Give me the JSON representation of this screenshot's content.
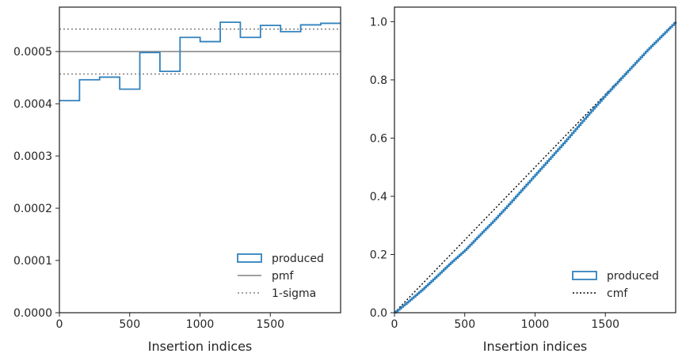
{
  "chart_data": [
    {
      "type": "histogram-step",
      "xlabel": "Insertion indices",
      "ylabel": "",
      "xlim": [
        0,
        2000
      ],
      "ylim": [
        0,
        0.000585
      ],
      "xticks": [
        "0",
        "500",
        "1000",
        "1500"
      ],
      "yticks": [
        "0.0000",
        "0.0001",
        "0.0002",
        "0.0003",
        "0.0004",
        "0.0005"
      ],
      "bin_edges": [
        0,
        143,
        286,
        429,
        572,
        715,
        858,
        1001,
        1144,
        1287,
        1430,
        1573,
        1716,
        1859,
        2000
      ],
      "series": [
        {
          "name": "produced",
          "color": "#3182bd",
          "values": [
            0.000406,
            0.000446,
            0.000451,
            0.000428,
            0.000498,
            0.000462,
            0.000527,
            0.000519,
            0.000556,
            0.000527,
            0.00055,
            0.000538,
            0.000551,
            0.000554
          ]
        }
      ],
      "reference_lines": [
        {
          "name": "pmf",
          "y": 0.0005,
          "style": "solid",
          "color": "#808080"
        },
        {
          "name": "1-sigma",
          "y": 0.000543,
          "style": "dotted",
          "color": "#808080"
        },
        {
          "name": "1-sigma-lower",
          "y": 0.000457,
          "style": "dotted",
          "color": "#808080"
        }
      ],
      "legend": {
        "placement": "lower-right",
        "entries": [
          "produced",
          "pmf",
          "1-sigma"
        ]
      },
      "grid": false
    },
    {
      "type": "line",
      "xlabel": "Insertion indices",
      "ylabel": "",
      "xlim": [
        0,
        2000
      ],
      "ylim": [
        0,
        1.05
      ],
      "xticks": [
        "0",
        "500",
        "1000",
        "1500"
      ],
      "yticks": [
        "0.0",
        "0.2",
        "0.4",
        "0.6",
        "0.8",
        "1.0"
      ],
      "series": [
        {
          "name": "produced",
          "color": "#3182bd",
          "style": "step",
          "x": [
            0,
            100,
            200,
            300,
            400,
            500,
            600,
            700,
            800,
            900,
            1000,
            1100,
            1200,
            1300,
            1400,
            1500,
            1600,
            1700,
            1800,
            1900,
            2000
          ],
          "y": [
            0,
            0.04,
            0.081,
            0.126,
            0.172,
            0.215,
            0.265,
            0.314,
            0.366,
            0.42,
            0.474,
            0.528,
            0.582,
            0.638,
            0.694,
            0.748,
            0.8,
            0.852,
            0.904,
            0.952,
            1.0
          ]
        },
        {
          "name": "cmf",
          "color": "#000000",
          "style": "dotted",
          "x": [
            0,
            2000
          ],
          "y": [
            0,
            1.0
          ]
        }
      ],
      "legend": {
        "placement": "lower-right",
        "entries": [
          "produced",
          "cmf"
        ]
      },
      "grid": false
    }
  ]
}
